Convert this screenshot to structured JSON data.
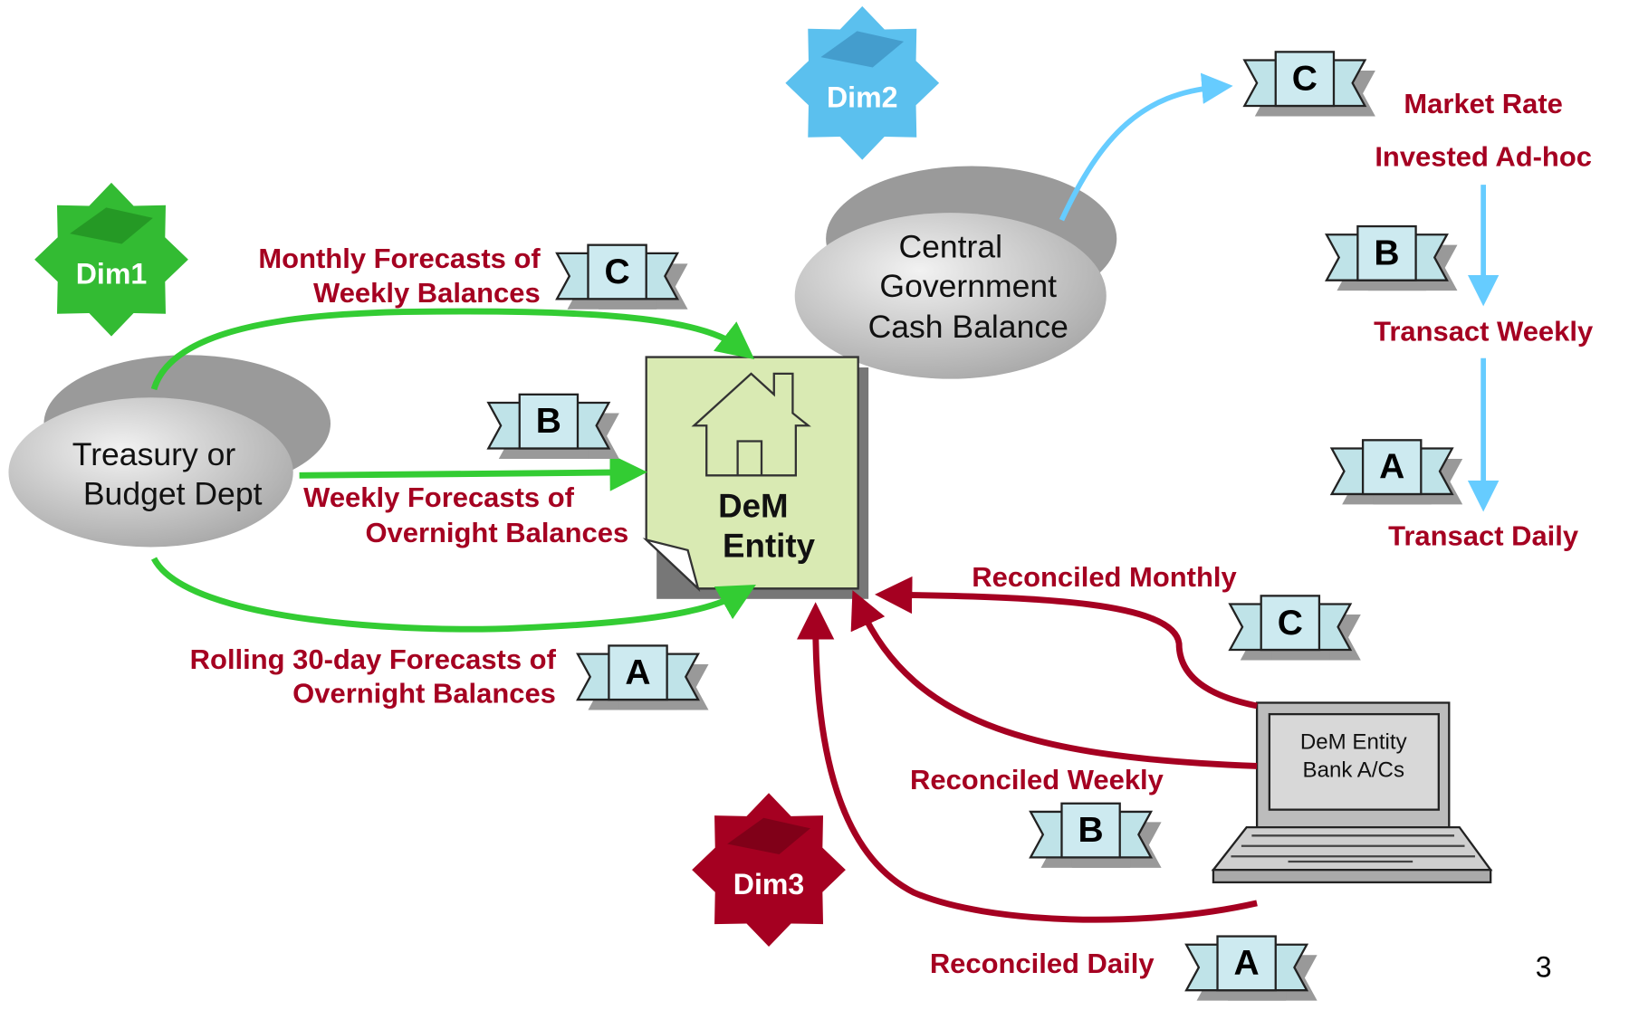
{
  "dims": [
    {
      "label": "Dim1"
    },
    {
      "label": "Dim2"
    },
    {
      "label": "Dim3"
    }
  ],
  "nodes": {
    "treasury": [
      "Treasury or",
      "Budget Dept"
    ],
    "central": [
      "Central",
      "Government",
      "Cash Balance"
    ],
    "entity": [
      "DeM",
      "Entity"
    ],
    "bank": [
      "DeM Entity",
      "Bank A/Cs"
    ]
  },
  "dim1_flows": [
    {
      "badge": "C",
      "label": [
        "Monthly Forecasts of",
        "Weekly Balances"
      ]
    },
    {
      "badge": "B",
      "label": [
        "Weekly Forecasts of",
        "Overnight Balances"
      ]
    },
    {
      "badge": "A",
      "label": [
        "Rolling 30-day Forecasts of",
        "Overnight Balances"
      ]
    }
  ],
  "dim2_flows": [
    {
      "badge": "C",
      "label": [
        "Market Rate",
        "Invested Ad-hoc"
      ]
    },
    {
      "badge": "B",
      "label": [
        "Transact Weekly"
      ]
    },
    {
      "badge": "A",
      "label": [
        "Transact Daily"
      ]
    }
  ],
  "dim3_flows": [
    {
      "badge": "C",
      "label": [
        "Reconciled Monthly"
      ]
    },
    {
      "badge": "B",
      "label": [
        "Reconciled Weekly"
      ]
    },
    {
      "badge": "A",
      "label": [
        "Reconciled Daily"
      ]
    }
  ],
  "page_number": "3"
}
